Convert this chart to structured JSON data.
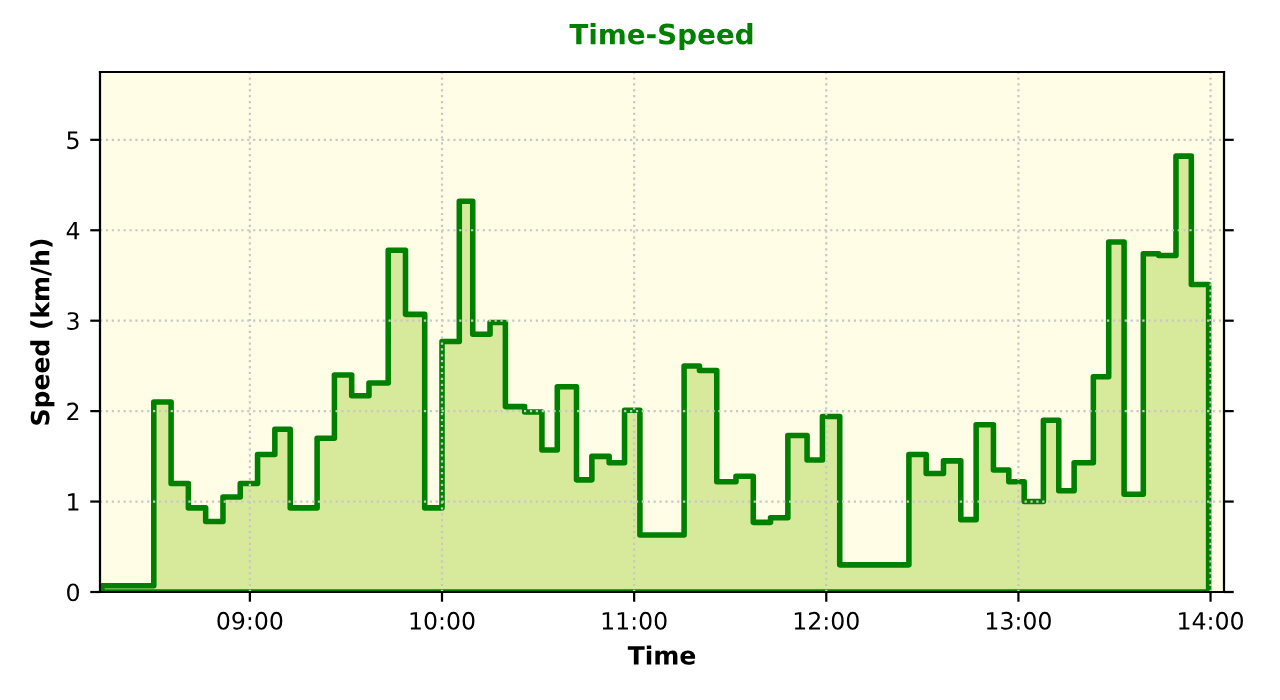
{
  "chart_data": {
    "type": "area",
    "title": "Time-Speed",
    "xlabel": "Time",
    "ylabel": "Speed (km/h)",
    "x": [
      8.23,
      8.5,
      8.59,
      8.68,
      8.77,
      8.86,
      8.95,
      9.04,
      9.13,
      9.21,
      9.35,
      9.44,
      9.53,
      9.62,
      9.72,
      9.81,
      9.91,
      10.0,
      10.09,
      10.16,
      10.25,
      10.33,
      10.43,
      10.52,
      10.6,
      10.7,
      10.78,
      10.87,
      10.95,
      11.03,
      11.26,
      11.34,
      11.43,
      11.53,
      11.62,
      11.71,
      11.8,
      11.9,
      11.98,
      12.07,
      12.43,
      12.52,
      12.61,
      12.7,
      12.78,
      12.87,
      12.95,
      13.03,
      13.13,
      13.21,
      13.29,
      13.39,
      13.47,
      13.55,
      13.65,
      13.73,
      13.82,
      13.9,
      13.99
    ],
    "series": [
      {
        "color": "#a6d040",
        "values": [
          0.07,
          2.1,
          1.2,
          0.93,
          0.78,
          1.05,
          1.2,
          1.52,
          1.8,
          0.93,
          1.7,
          2.4,
          2.17,
          2.31,
          3.78,
          3.07,
          0.93,
          2.77,
          4.32,
          2.85,
          2.98,
          2.05,
          1.99,
          1.57,
          2.27,
          1.24,
          1.5,
          1.43,
          2.01,
          0.63,
          2.5,
          2.45,
          1.22,
          1.28,
          0.77,
          0.82,
          1.73,
          1.46,
          1.94,
          0.3,
          1.52,
          1.31,
          1.45,
          0.8,
          1.85,
          1.35,
          1.22,
          1.0,
          1.9,
          1.12,
          1.43,
          2.38,
          3.87,
          1.08,
          3.74,
          3.72,
          4.82,
          3.4,
          3.4
        ]
      }
    ],
    "xlim": [
      8.22,
      14.07
    ],
    "xticks": [
      {
        "value": 9,
        "label": "09:00"
      },
      {
        "value": 10,
        "label": "10:00"
      },
      {
        "value": 11,
        "label": "11:00"
      },
      {
        "value": 12,
        "label": "12:00"
      },
      {
        "value": 13,
        "label": "13:00"
      },
      {
        "value": 14,
        "label": "14:00"
      }
    ],
    "ylim": [
      0,
      5.75
    ],
    "yticks": [
      0,
      1,
      2,
      3,
      4,
      5
    ],
    "grid": true
  }
}
